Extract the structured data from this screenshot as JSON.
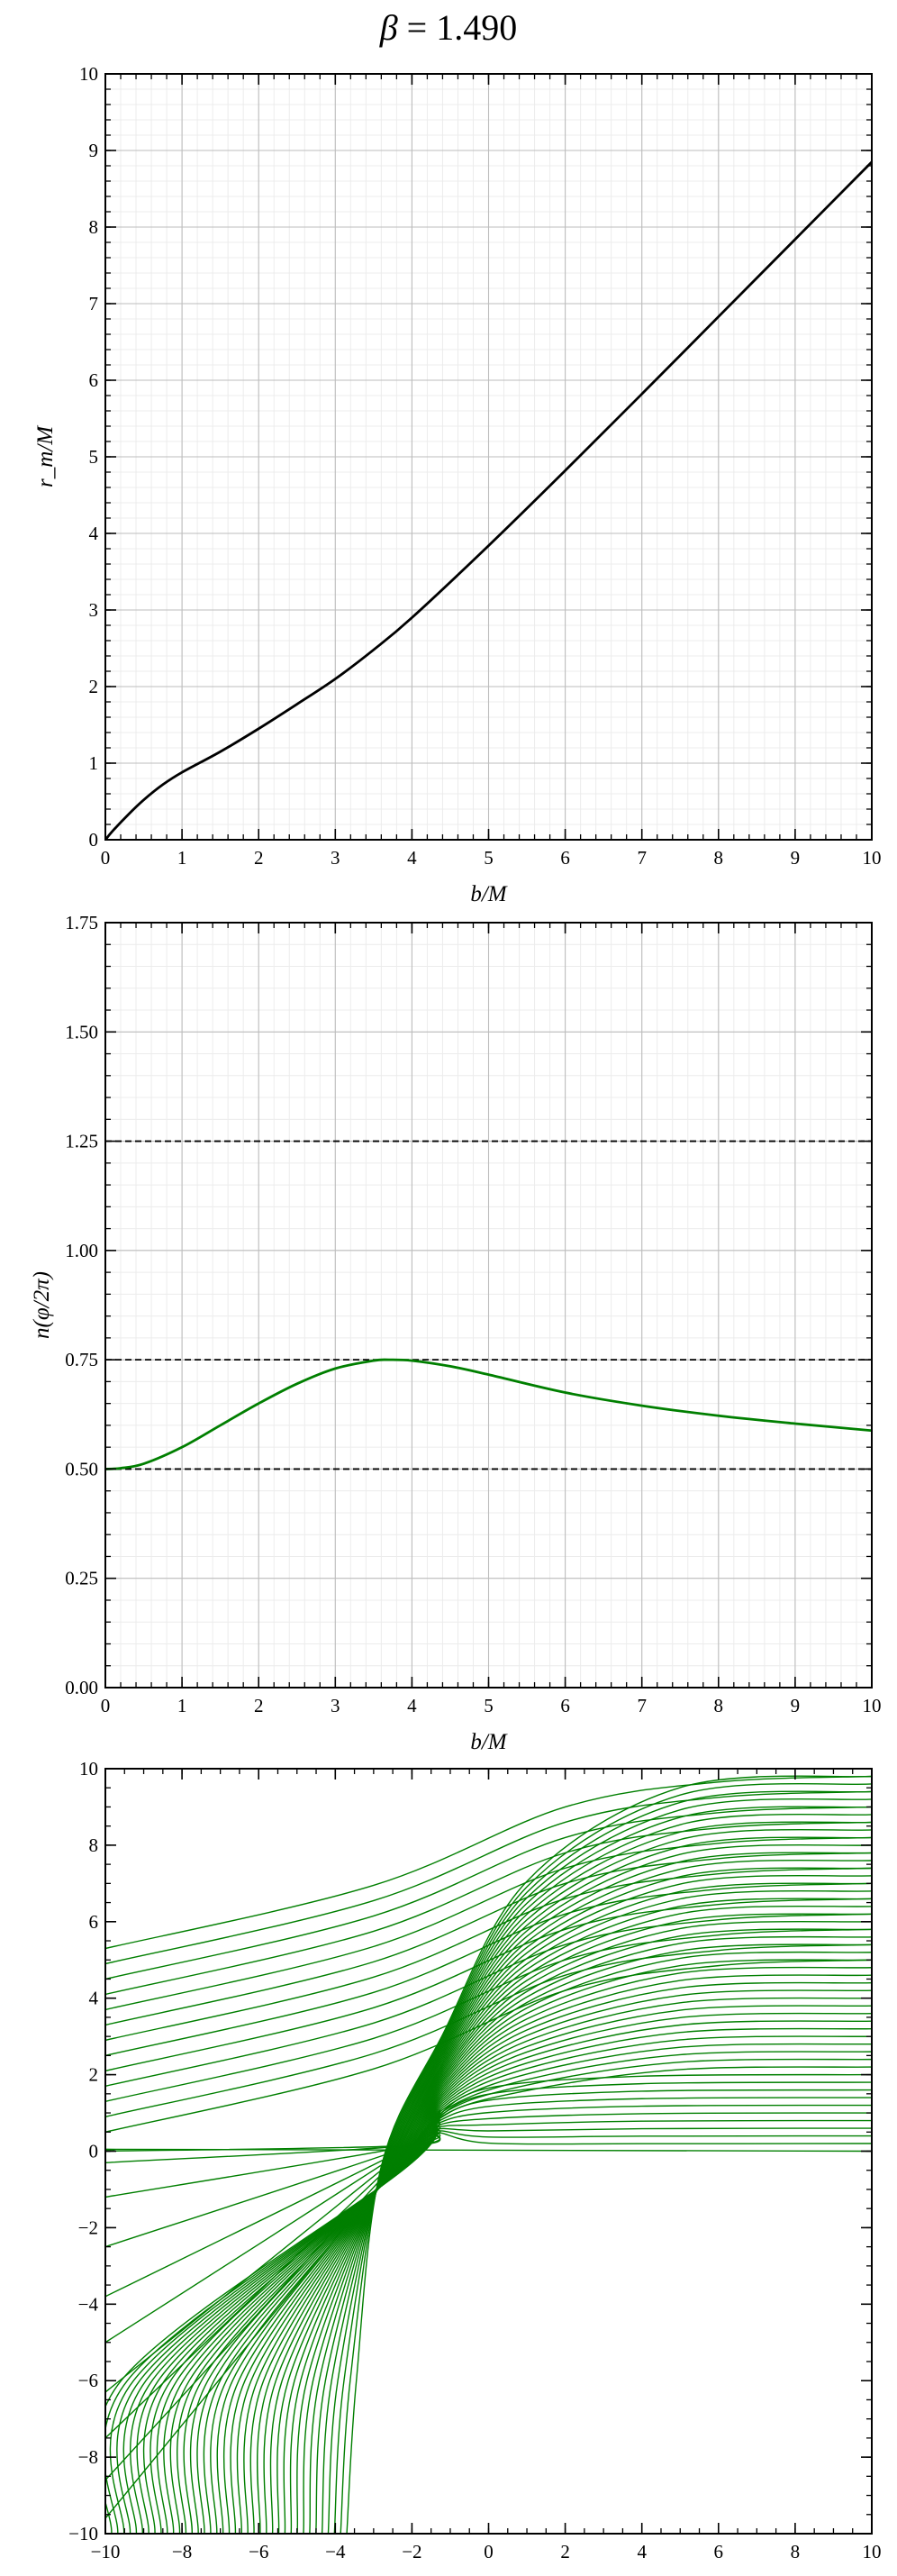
{
  "figure": {
    "title_symbol": "β",
    "title_eq": " = 1.490"
  },
  "chart_data": [
    {
      "type": "line",
      "xlabel": "b/M",
      "ylabel": "r_m/M",
      "xlim": [
        0,
        10
      ],
      "ylim": [
        0,
        10
      ],
      "xticks": [
        0,
        1,
        2,
        3,
        4,
        5,
        6,
        7,
        8,
        9,
        10
      ],
      "yticks": [
        0,
        1,
        2,
        3,
        4,
        5,
        6,
        7,
        8,
        9,
        10
      ],
      "xtick_labels": [
        "0",
        "1",
        "2",
        "3",
        "4",
        "5",
        "6",
        "7",
        "8",
        "9",
        "10"
      ],
      "ytick_labels": [
        "0",
        "1",
        "2",
        "3",
        "4",
        "5",
        "6",
        "7",
        "8",
        "9",
        "10"
      ],
      "grid": true,
      "series": [
        {
          "color": "#000000",
          "x": [
            0,
            0.1,
            0.3,
            0.5,
            0.75,
            1.0,
            1.5,
            2.0,
            2.5,
            3.0,
            3.5,
            4.0,
            5.0,
            6.0,
            7.0,
            8.0,
            9.0,
            10.0
          ],
          "y": [
            0,
            0.12,
            0.33,
            0.52,
            0.72,
            0.88,
            1.15,
            1.45,
            1.77,
            2.1,
            2.48,
            2.9,
            3.84,
            4.82,
            5.82,
            6.83,
            7.84,
            8.85
          ]
        }
      ]
    },
    {
      "type": "line",
      "xlabel": "b/M",
      "ylabel": "n(φ/2π)",
      "xlim": [
        0,
        10
      ],
      "ylim": [
        0,
        1.75
      ],
      "xticks": [
        0,
        1,
        2,
        3,
        4,
        5,
        6,
        7,
        8,
        9,
        10
      ],
      "yticks": [
        0,
        0.25,
        0.5,
        0.75,
        1.0,
        1.25,
        1.5,
        1.75
      ],
      "xtick_labels": [
        "0",
        "1",
        "2",
        "3",
        "4",
        "5",
        "6",
        "7",
        "8",
        "9",
        "10"
      ],
      "ytick_labels": [
        "0.00",
        "0.25",
        "0.50",
        "0.75",
        "1.00",
        "1.25",
        "1.50",
        "1.75"
      ],
      "grid": true,
      "reference_lines": [
        0.5,
        0.75,
        1.25
      ],
      "series": [
        {
          "color": "#007f00",
          "x": [
            0,
            0.2,
            0.5,
            1.0,
            1.5,
            2.0,
            2.5,
            3.0,
            3.5,
            3.7,
            4.0,
            4.5,
            5.0,
            6.0,
            7.0,
            8.0,
            9.0,
            10.0
          ],
          "y": [
            0.5,
            0.502,
            0.512,
            0.55,
            0.6,
            0.65,
            0.695,
            0.73,
            0.748,
            0.75,
            0.748,
            0.735,
            0.716,
            0.675,
            0.645,
            0.622,
            0.604,
            0.588
          ]
        }
      ]
    },
    {
      "type": "line",
      "xlabel": "",
      "ylabel": "",
      "xlim": [
        -10,
        10
      ],
      "ylim": [
        -10,
        10
      ],
      "xticks": [
        -10,
        -8,
        -6,
        -4,
        -2,
        0,
        2,
        4,
        6,
        8,
        10
      ],
      "yticks": [
        -10,
        -8,
        -6,
        -4,
        -2,
        0,
        2,
        4,
        6,
        8,
        10
      ],
      "xtick_labels": [
        "−10",
        "−8",
        "−6",
        "−4",
        "−2",
        "0",
        "2",
        "4",
        "6",
        "8",
        "10"
      ],
      "ytick_labels": [
        "−10",
        "−8",
        "−6",
        "−4",
        "−2",
        "0",
        "2",
        "4",
        "6",
        "8",
        "10"
      ],
      "grid": false,
      "line_color": "#007f00",
      "family": {
        "description": "photon trajectories arriving from x = +10 at impact parameter b, deflected toward the focal region near (-2, 0.2)",
        "b_values": [
          0.0,
          0.2,
          0.4,
          0.6,
          0.8,
          1.0,
          1.2,
          1.4,
          1.6,
          1.8,
          2.0,
          2.2,
          2.4,
          2.6,
          2.8,
          3.0,
          3.2,
          3.4,
          3.6,
          3.8,
          4.0,
          4.2,
          4.4,
          4.6,
          4.8,
          5.0,
          5.2,
          5.4,
          5.6,
          5.8,
          6.0,
          6.2,
          6.4,
          6.6,
          6.8,
          7.0,
          7.2,
          7.4,
          7.6,
          7.8,
          8.0,
          8.2,
          8.4,
          8.6,
          8.8,
          9.0,
          9.2,
          9.4,
          9.6,
          9.8
        ],
        "exit_y_at_left_edge": [
          0.0,
          0.0,
          -0.3,
          -1.2,
          -2.5,
          -3.8,
          -5.0,
          -6.3,
          -7.5,
          -8.6,
          -9.6,
          -10,
          -10,
          -10,
          -10,
          -10,
          -10,
          -10,
          -10,
          -10,
          -10,
          -10,
          -10,
          -10,
          -10,
          -10,
          -10,
          -10,
          -10,
          -10,
          -10,
          -10,
          -10,
          -10,
          -10,
          -10,
          -10,
          -10,
          -10,
          -10,
          -10,
          -10,
          -10,
          -10,
          -10,
          -10,
          -10,
          -10,
          -10,
          -10
        ],
        "large_b_exit_y_at_left_edge": [
          5.3,
          4.9,
          4.5,
          4.1,
          3.7,
          3.3,
          2.9,
          2.5,
          2.1,
          1.7,
          1.3,
          0.9,
          0.5
        ]
      }
    }
  ]
}
